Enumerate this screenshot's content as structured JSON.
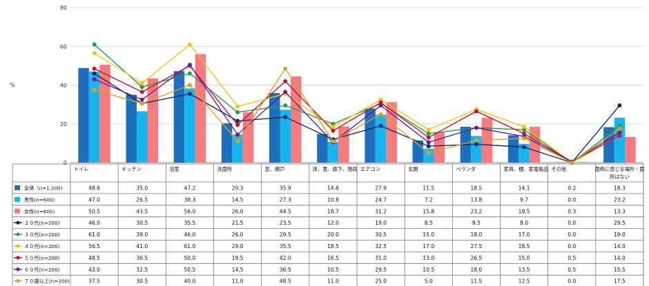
{
  "chart_data": {
    "type": "bar",
    "ylabel": "%",
    "ylim": [
      0,
      80
    ],
    "yticks": [
      0,
      20,
      40,
      60,
      80
    ],
    "categories": [
      "トイレ",
      "キッチン",
      "浴室",
      "洗面所",
      "窓、網戸",
      "床、畳、廊下、階段",
      "エアコン",
      "玄関",
      "ベランダ",
      "家具、棚、家電製品",
      "その他",
      "面倒に感じる場所・箇所はない"
    ],
    "series": [
      {
        "name": "全体（n=1,200)",
        "kind": "bar",
        "color": "#1f6fbf",
        "values": [
          48.8,
          35.0,
          47.2,
          20.3,
          35.9,
          14.8,
          27.9,
          11.5,
          18.5,
          14.1,
          0.2,
          18.3
        ]
      },
      {
        "name": "男性(n=600)",
        "kind": "bar",
        "color": "#18b6ee",
        "values": [
          47.0,
          26.5,
          38.3,
          14.5,
          27.3,
          10.8,
          24.7,
          7.2,
          13.8,
          9.7,
          0.0,
          23.2
        ]
      },
      {
        "name": "女性(n=600)",
        "kind": "bar",
        "color": "#f77a7f",
        "values": [
          50.5,
          43.5,
          56.0,
          26.0,
          44.5,
          18.7,
          31.2,
          15.8,
          23.2,
          18.5,
          0.3,
          13.3
        ]
      },
      {
        "name": "２０代(n=200)",
        "kind": "line",
        "color": "#0d2a66",
        "values": [
          46.0,
          30.5,
          35.5,
          21.5,
          23.5,
          12.0,
          19.0,
          8.5,
          9.5,
          8.0,
          0.0,
          29.5
        ]
      },
      {
        "name": "３０代(n=200)",
        "kind": "line",
        "color": "#1fa14a",
        "values": [
          61.0,
          39.0,
          46.0,
          26.0,
          29.5,
          20.0,
          30.5,
          15.0,
          18.0,
          17.0,
          0.0,
          19.0
        ]
      },
      {
        "name": "４０代(n=200)",
        "kind": "line",
        "color": "#f2c20f",
        "values": [
          56.5,
          41.0,
          61.0,
          29.0,
          35.5,
          18.5,
          32.5,
          17.0,
          27.5,
          18.5,
          0.0,
          14.0
        ]
      },
      {
        "name": "５０代(n=200)",
        "kind": "line",
        "color": "#c8102e",
        "values": [
          48.5,
          36.5,
          50.0,
          19.5,
          42.0,
          16.5,
          31.0,
          13.0,
          26.5,
          15.0,
          0.5,
          14.0
        ]
      },
      {
        "name": "６０代(n=200)",
        "kind": "line",
        "color": "#6a1b9a",
        "values": [
          43.0,
          32.5,
          50.5,
          14.5,
          36.5,
          10.5,
          29.5,
          10.5,
          18.0,
          13.5,
          0.5,
          15.5
        ]
      },
      {
        "name": "７０歳以上(n=200)",
        "kind": "line",
        "color": "#d9a21b",
        "values": [
          37.5,
          30.5,
          40.0,
          11.0,
          48.5,
          11.0,
          25.0,
          5.0,
          11.5,
          12.5,
          0.0,
          17.5
        ]
      }
    ]
  }
}
